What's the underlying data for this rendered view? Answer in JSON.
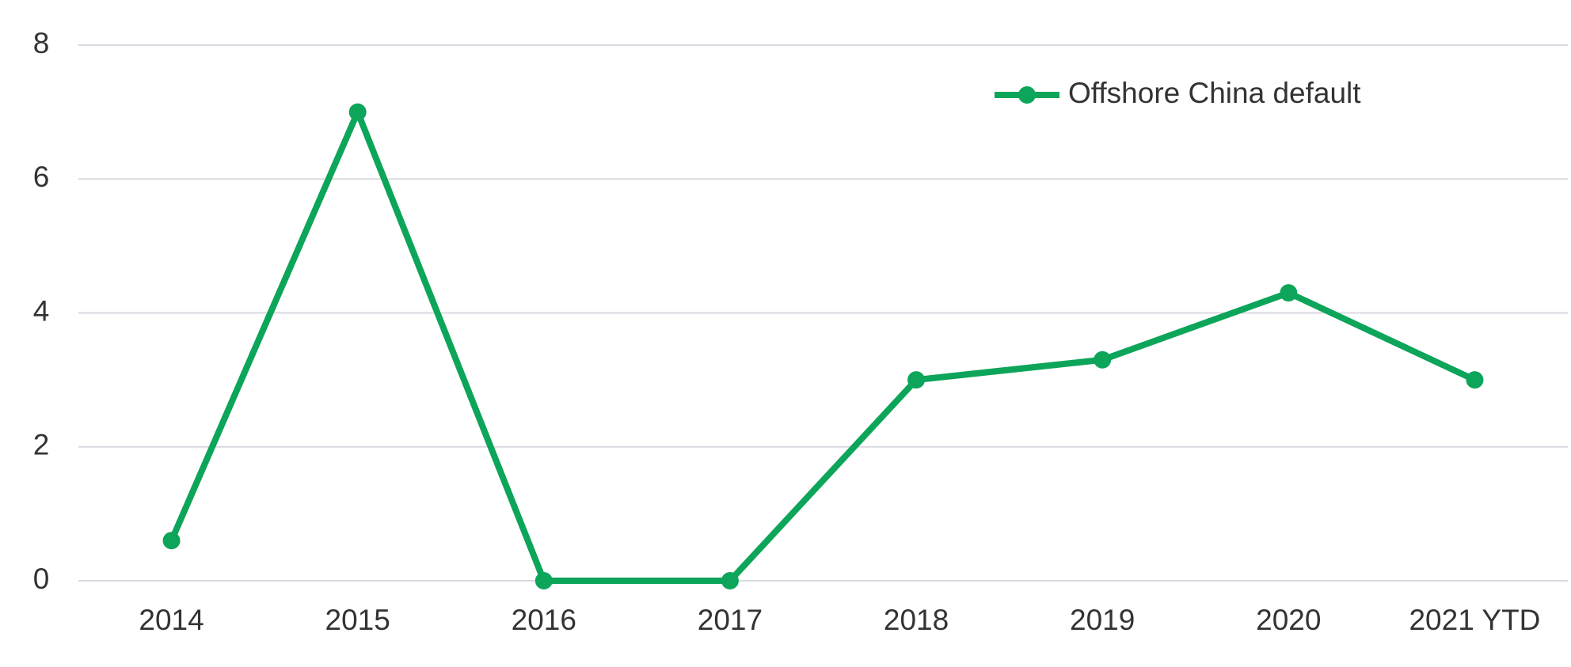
{
  "chart_data": {
    "type": "line",
    "categories": [
      "2014",
      "2015",
      "2016",
      "2017",
      "2018",
      "2019",
      "2020",
      "2021 YTD"
    ],
    "series": [
      {
        "name": "Offshore China default",
        "color": "#0ca55a",
        "values": [
          0.6,
          7,
          0,
          0,
          3,
          3.3,
          4.3,
          3
        ]
      }
    ],
    "ylim": [
      0,
      8
    ],
    "yticks": [
      0,
      2,
      4,
      6,
      8
    ],
    "grid": true,
    "legend": "top-right"
  }
}
